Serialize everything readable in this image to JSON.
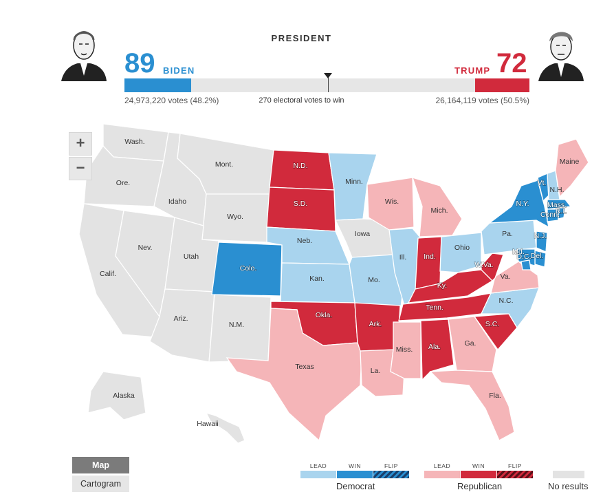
{
  "header": {
    "title": "PRESIDENT",
    "dem": {
      "name": "BIDEN",
      "electoral_votes": "89",
      "popular_votes": "24,973,220 votes (48.2%)",
      "color": "#2a8fd1"
    },
    "rep": {
      "name": "TRUMP",
      "electoral_votes": "72",
      "popular_votes": "26,164,119 votes (50.5%)",
      "color": "#d12a3c"
    },
    "threshold_note": "270 electoral votes to win",
    "progress": {
      "dem_electoral": 89,
      "rep_electoral": 72,
      "total": 538,
      "to_win": 270
    }
  },
  "controls": {
    "zoom_in": "+",
    "zoom_out": "−"
  },
  "colors": {
    "dem_lead": "#a9d4ee",
    "dem_win": "#2a8fd1",
    "rep_lead": "#f5b5b8",
    "rep_win": "#d12a3c",
    "no_results": "#e3e3e3"
  },
  "map": {
    "states": [
      {
        "id": "WA",
        "label": "Wash.",
        "status": "no_results"
      },
      {
        "id": "OR",
        "label": "Ore.",
        "status": "no_results"
      },
      {
        "id": "CA",
        "label": "Calif.",
        "status": "no_results"
      },
      {
        "id": "NV",
        "label": "Nev.",
        "status": "no_results"
      },
      {
        "id": "ID",
        "label": "Idaho",
        "status": "no_results"
      },
      {
        "id": "MT",
        "label": "Mont.",
        "status": "no_results"
      },
      {
        "id": "WY",
        "label": "Wyo.",
        "status": "no_results"
      },
      {
        "id": "UT",
        "label": "Utah",
        "status": "no_results"
      },
      {
        "id": "AZ",
        "label": "Ariz.",
        "status": "no_results"
      },
      {
        "id": "CO",
        "label": "Colo.",
        "status": "dem_win"
      },
      {
        "id": "NM",
        "label": "N.M.",
        "status": "no_results"
      },
      {
        "id": "ND",
        "label": "N.D.",
        "status": "rep_win"
      },
      {
        "id": "SD",
        "label": "S.D.",
        "status": "rep_win"
      },
      {
        "id": "NE",
        "label": "Neb.",
        "status": "dem_lead"
      },
      {
        "id": "KS",
        "label": "Kan.",
        "status": "dem_lead"
      },
      {
        "id": "OK",
        "label": "Okla.",
        "status": "rep_win"
      },
      {
        "id": "TX",
        "label": "Texas",
        "status": "rep_lead"
      },
      {
        "id": "MN",
        "label": "Minn.",
        "status": "dem_lead"
      },
      {
        "id": "IA",
        "label": "Iowa",
        "status": "no_results"
      },
      {
        "id": "MO",
        "label": "Mo.",
        "status": "dem_lead"
      },
      {
        "id": "AR",
        "label": "Ark.",
        "status": "rep_win"
      },
      {
        "id": "LA",
        "label": "La.",
        "status": "rep_lead"
      },
      {
        "id": "WI",
        "label": "Wis.",
        "status": "rep_lead"
      },
      {
        "id": "IL",
        "label": "Ill.",
        "status": "dem_lead"
      },
      {
        "id": "MI",
        "label": "Mich.",
        "status": "rep_lead"
      },
      {
        "id": "IN",
        "label": "Ind.",
        "status": "rep_win"
      },
      {
        "id": "OH",
        "label": "Ohio",
        "status": "dem_lead"
      },
      {
        "id": "KY",
        "label": "Ky.",
        "status": "rep_win"
      },
      {
        "id": "TN",
        "label": "Tenn.",
        "status": "rep_win"
      },
      {
        "id": "MS",
        "label": "Miss.",
        "status": "rep_lead"
      },
      {
        "id": "AL",
        "label": "Ala.",
        "status": "rep_win"
      },
      {
        "id": "GA",
        "label": "Ga.",
        "status": "rep_lead"
      },
      {
        "id": "FL",
        "label": "Fla.",
        "status": "rep_lead"
      },
      {
        "id": "SC",
        "label": "S.C.",
        "status": "rep_win"
      },
      {
        "id": "NC",
        "label": "N.C.",
        "status": "dem_lead"
      },
      {
        "id": "VA",
        "label": "Va.",
        "status": "rep_lead"
      },
      {
        "id": "WV",
        "label": "W.Va.",
        "status": "rep_win"
      },
      {
        "id": "PA",
        "label": "Pa.",
        "status": "dem_lead"
      },
      {
        "id": "NY",
        "label": "N.Y.",
        "status": "dem_win"
      },
      {
        "id": "VT",
        "label": "Vt.",
        "status": "dem_win"
      },
      {
        "id": "NH",
        "label": "N.H.",
        "status": "dem_lead"
      },
      {
        "id": "ME",
        "label": "Maine",
        "status": "rep_lead"
      },
      {
        "id": "MA",
        "label": "Mass.",
        "status": "dem_win"
      },
      {
        "id": "CT",
        "label": "Conn.",
        "status": "dem_win"
      },
      {
        "id": "RI",
        "label": "R.I.",
        "status": "dem_win"
      },
      {
        "id": "NJ",
        "label": "N.J.",
        "status": "dem_win"
      },
      {
        "id": "DE",
        "label": "Del.",
        "status": "dem_win"
      },
      {
        "id": "MD",
        "label": "Md.",
        "status": "dem_win"
      },
      {
        "id": "DC",
        "label": "D.C.",
        "status": "dem_win"
      },
      {
        "id": "AK",
        "label": "Alaska",
        "status": "no_results"
      },
      {
        "id": "HI",
        "label": "Hawaii",
        "status": "no_results"
      }
    ]
  },
  "view_toggle": {
    "map": "Map",
    "cartogram": "Cartogram",
    "selected": "Map"
  },
  "legend": {
    "dem": {
      "name": "Democrat",
      "lead": "LEAD",
      "win": "WIN",
      "flip": "FLIP"
    },
    "rep": {
      "name": "Republican",
      "lead": "LEAD",
      "win": "WIN",
      "flip": "FLIP"
    },
    "none": {
      "name": "No results"
    }
  }
}
